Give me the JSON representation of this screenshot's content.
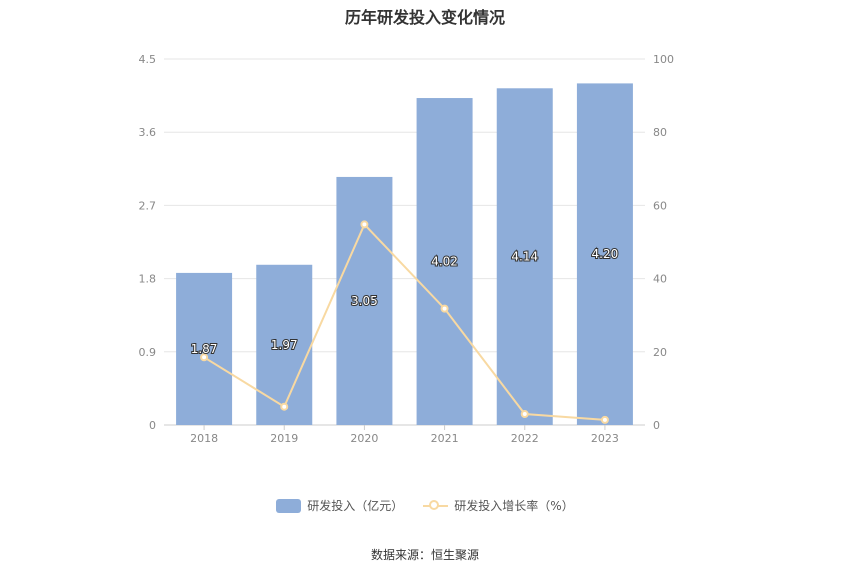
{
  "chart_data": {
    "type": "bar",
    "title": "历年研发投入变化情况",
    "categories": [
      "2018",
      "2019",
      "2020",
      "2021",
      "2022",
      "2023"
    ],
    "series": [
      {
        "name": "研发投入（亿元）",
        "type": "bar",
        "axis": "left",
        "values": [
          1.87,
          1.97,
          3.05,
          4.02,
          4.14,
          4.2
        ],
        "data_labels": [
          "1.87",
          "1.97",
          "3.05",
          "4.02",
          "4.14",
          "4.20"
        ],
        "color": "#8eadd9"
      },
      {
        "name": "研发投入增长率（%）",
        "type": "line",
        "axis": "right",
        "values": [
          18.5,
          5.0,
          54.8,
          31.8,
          3.0,
          1.4
        ],
        "color": "#f8d9a2"
      }
    ],
    "y_left": {
      "min": 0,
      "max": 4.5,
      "ticks": [
        "0",
        "0.9",
        "1.8",
        "2.7",
        "3.6",
        "4.5"
      ]
    },
    "y_right": {
      "min": 0,
      "max": 100,
      "ticks": [
        "0",
        "20",
        "40",
        "60",
        "80",
        "100"
      ]
    },
    "grid": true,
    "legend_position": "bottom"
  },
  "source": "数据来源：恒生聚源"
}
